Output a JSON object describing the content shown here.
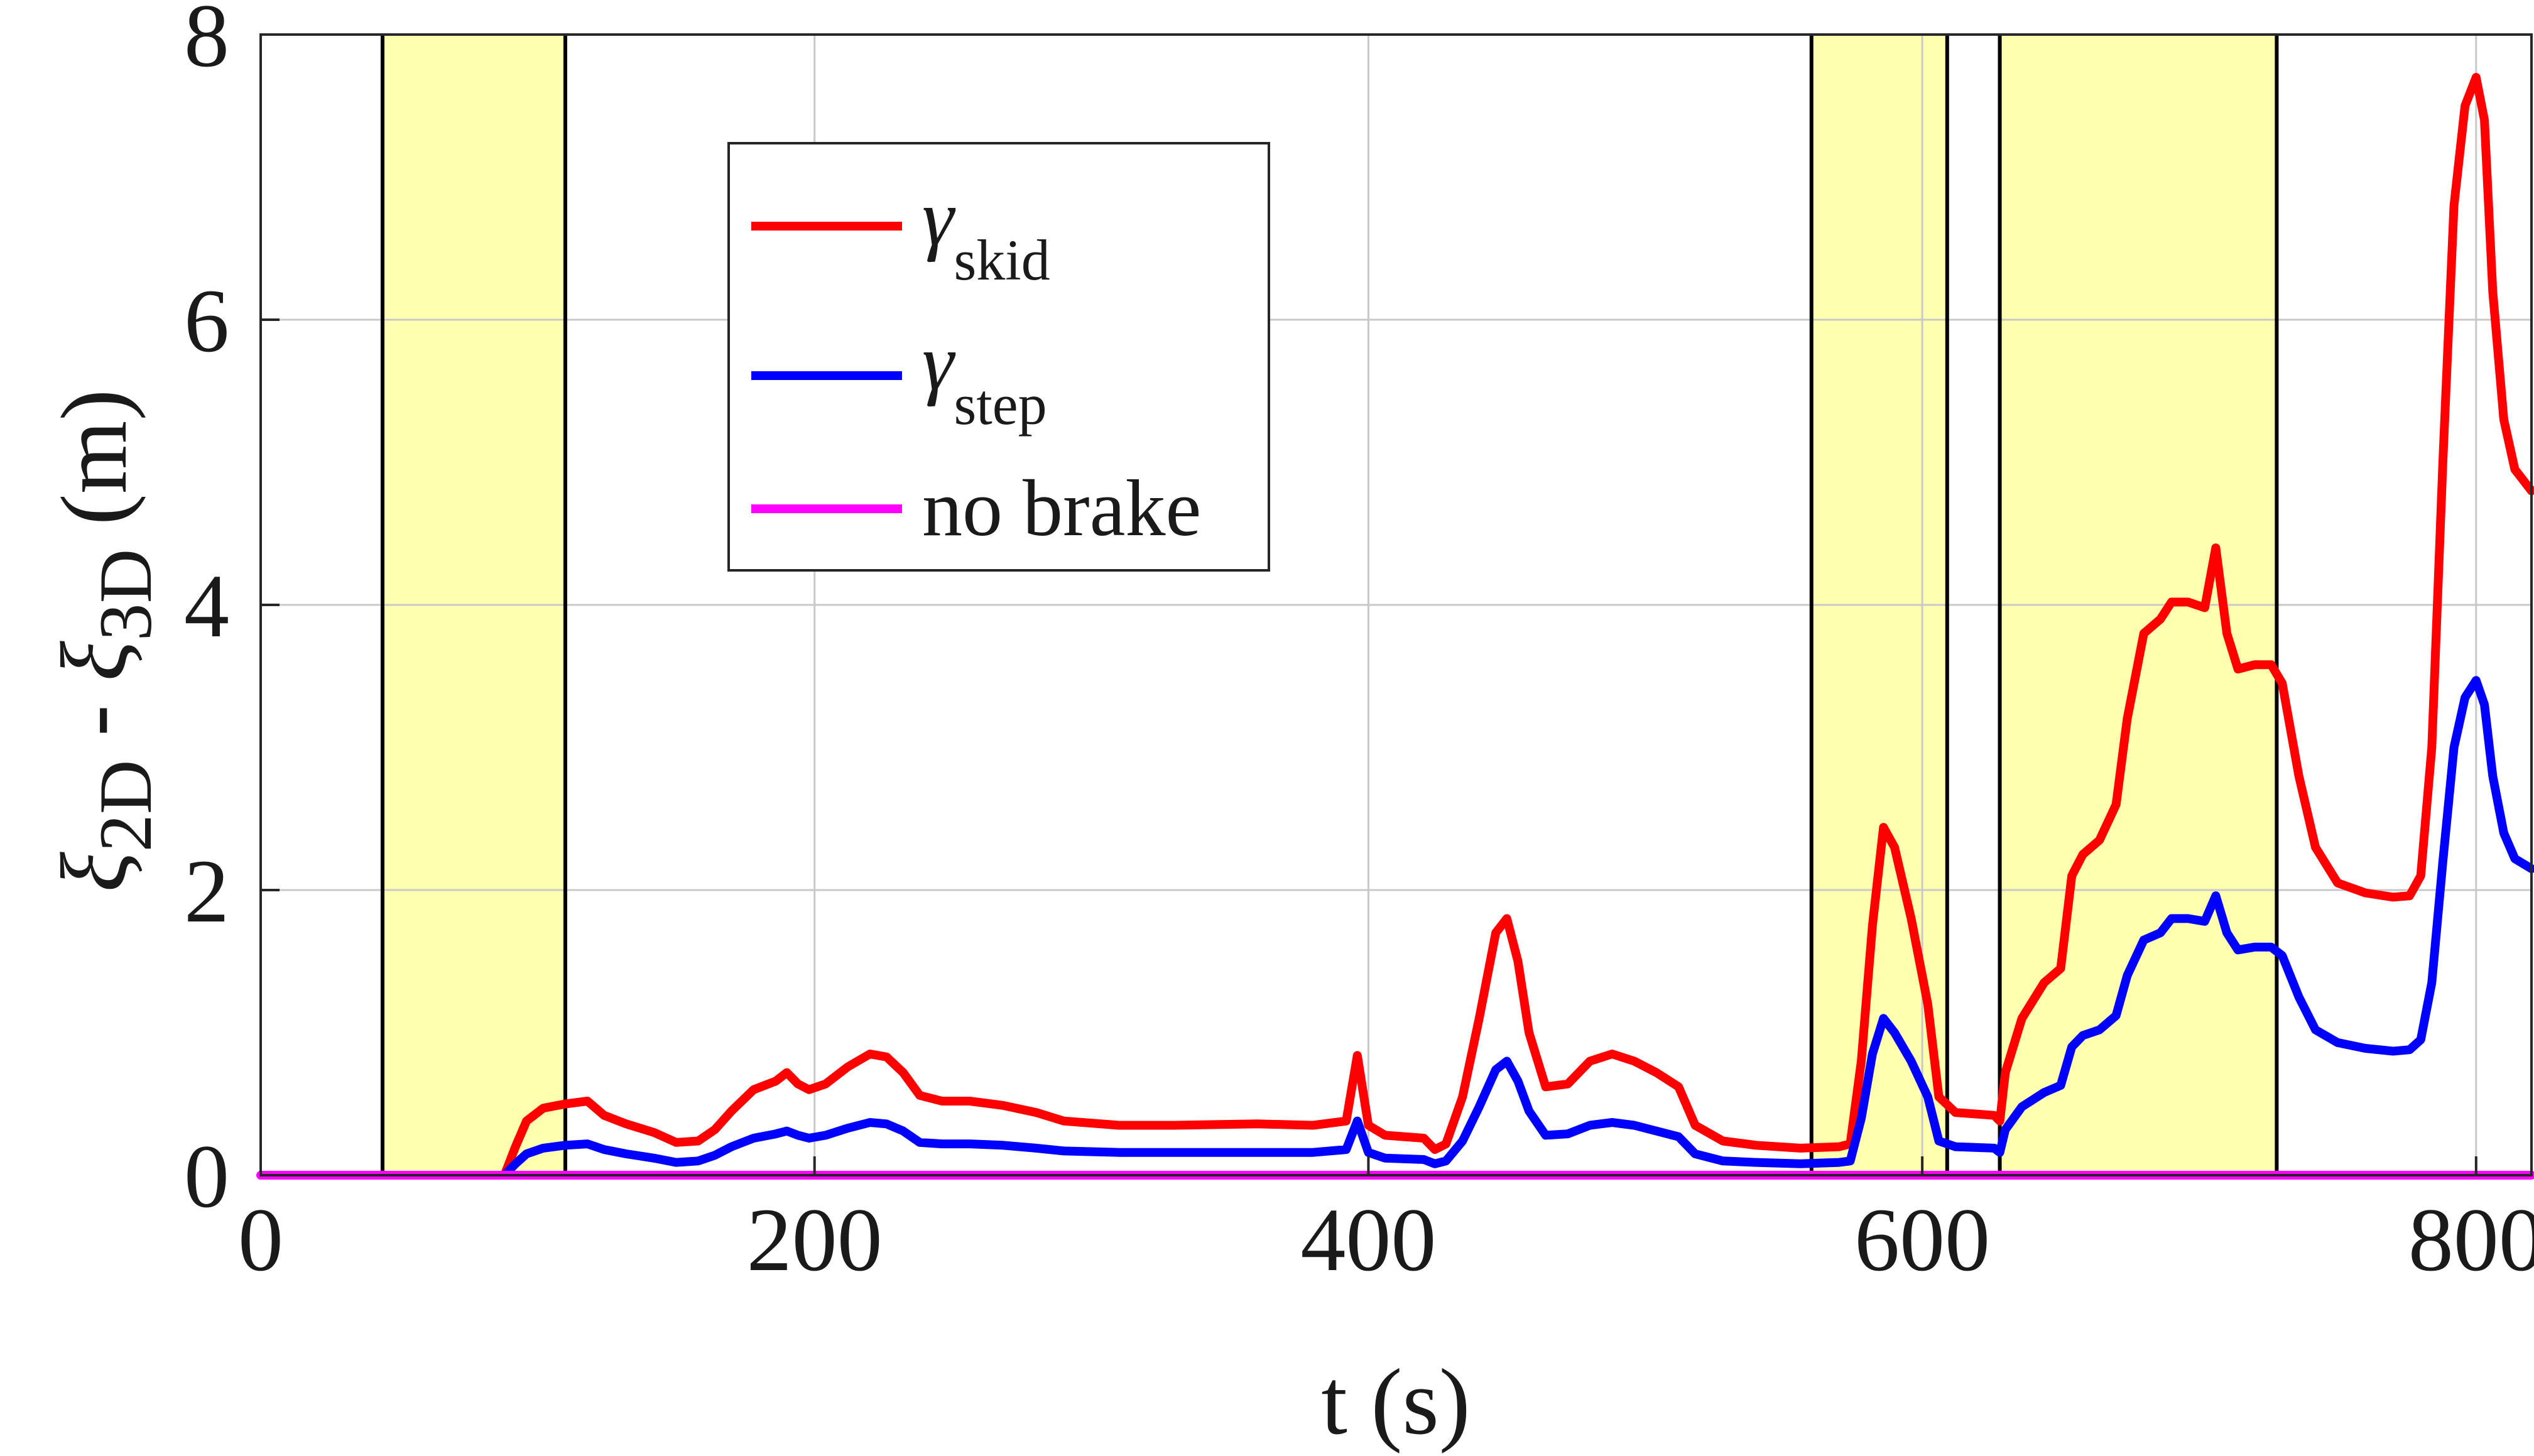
{
  "chart_data": {
    "type": "line",
    "xlabel": "t (s)",
    "ylabel": {
      "sym1": "ξ",
      "sub1": "2D",
      "dash": "-",
      "sym2": "ξ",
      "sub2": "3D",
      "unit": "(m)"
    },
    "xlim": [
      0,
      820
    ],
    "ylim": [
      0,
      8
    ],
    "xticks": [
      "0",
      "200",
      "400",
      "600",
      "800"
    ],
    "xtick_values": [
      0,
      200,
      400,
      600,
      800
    ],
    "yticks": [
      "0",
      "2",
      "4",
      "6",
      "8"
    ],
    "ytick_values": [
      0,
      2,
      4,
      6,
      8
    ],
    "grid": true,
    "legend_position": "upper-left-center",
    "shaded_intervals": [
      [
        44,
        110
      ],
      [
        560,
        609
      ],
      [
        628,
        728
      ]
    ],
    "vertical_lines": [
      44,
      110,
      560,
      609,
      628,
      728
    ],
    "colors": {
      "shade": "#ffffb0",
      "grid": "#c8c8c8",
      "vline": "#000000"
    },
    "series": [
      {
        "name": "γ skid",
        "legend_symbol": "γ",
        "legend_sub": "skid",
        "color": "#ff0000",
        "points": [
          [
            88,
            0
          ],
          [
            92,
            0.2
          ],
          [
            96,
            0.38
          ],
          [
            102,
            0.47
          ],
          [
            110,
            0.5
          ],
          [
            118,
            0.52
          ],
          [
            124,
            0.42
          ],
          [
            132,
            0.36
          ],
          [
            142,
            0.3
          ],
          [
            150,
            0.23
          ],
          [
            158,
            0.24
          ],
          [
            164,
            0.32
          ],
          [
            170,
            0.45
          ],
          [
            178,
            0.6
          ],
          [
            186,
            0.66
          ],
          [
            190,
            0.72
          ],
          [
            194,
            0.64
          ],
          [
            198,
            0.6
          ],
          [
            204,
            0.64
          ],
          [
            212,
            0.76
          ],
          [
            220,
            0.85
          ],
          [
            226,
            0.83
          ],
          [
            232,
            0.72
          ],
          [
            238,
            0.56
          ],
          [
            246,
            0.52
          ],
          [
            256,
            0.52
          ],
          [
            268,
            0.49
          ],
          [
            280,
            0.44
          ],
          [
            290,
            0.38
          ],
          [
            310,
            0.35
          ],
          [
            330,
            0.35
          ],
          [
            360,
            0.36
          ],
          [
            380,
            0.35
          ],
          [
            392,
            0.38
          ],
          [
            396,
            0.84
          ],
          [
            400,
            0.35
          ],
          [
            406,
            0.28
          ],
          [
            420,
            0.26
          ],
          [
            424,
            0.18
          ],
          [
            428,
            0.22
          ],
          [
            434,
            0.55
          ],
          [
            440,
            1.1
          ],
          [
            446,
            1.7
          ],
          [
            450,
            1.8
          ],
          [
            454,
            1.5
          ],
          [
            458,
            1.0
          ],
          [
            464,
            0.62
          ],
          [
            472,
            0.64
          ],
          [
            480,
            0.8
          ],
          [
            488,
            0.85
          ],
          [
            496,
            0.8
          ],
          [
            504,
            0.72
          ],
          [
            512,
            0.62
          ],
          [
            518,
            0.35
          ],
          [
            528,
            0.24
          ],
          [
            540,
            0.21
          ],
          [
            556,
            0.19
          ],
          [
            570,
            0.2
          ],
          [
            574,
            0.22
          ],
          [
            578,
            0.8
          ],
          [
            582,
            1.75
          ],
          [
            586,
            2.44
          ],
          [
            590,
            2.3
          ],
          [
            596,
            1.8
          ],
          [
            602,
            1.2
          ],
          [
            606,
            0.55
          ],
          [
            612,
            0.44
          ],
          [
            626,
            0.42
          ],
          [
            628,
            0.38
          ],
          [
            630,
            0.72
          ],
          [
            636,
            1.1
          ],
          [
            644,
            1.35
          ],
          [
            650,
            1.45
          ],
          [
            654,
            2.1
          ],
          [
            658,
            2.25
          ],
          [
            664,
            2.35
          ],
          [
            670,
            2.6
          ],
          [
            674,
            3.2
          ],
          [
            680,
            3.8
          ],
          [
            686,
            3.9
          ],
          [
            690,
            4.02
          ],
          [
            696,
            4.02
          ],
          [
            702,
            3.98
          ],
          [
            706,
            4.4
          ],
          [
            710,
            3.8
          ],
          [
            714,
            3.55
          ],
          [
            720,
            3.58
          ],
          [
            726,
            3.58
          ],
          [
            730,
            3.45
          ],
          [
            736,
            2.8
          ],
          [
            742,
            2.3
          ],
          [
            750,
            2.05
          ],
          [
            760,
            1.98
          ],
          [
            770,
            1.95
          ],
          [
            776,
            1.96
          ],
          [
            780,
            2.1
          ],
          [
            784,
            3.0
          ],
          [
            788,
            5.0
          ],
          [
            792,
            6.8
          ],
          [
            796,
            7.5
          ],
          [
            800,
            7.7
          ],
          [
            803,
            7.4
          ],
          [
            806,
            6.2
          ],
          [
            810,
            5.3
          ],
          [
            814,
            4.95
          ],
          [
            820,
            4.8
          ]
        ]
      },
      {
        "name": "γ step",
        "legend_symbol": "γ",
        "legend_sub": "step",
        "color": "#0000ff",
        "points": [
          [
            88,
            0
          ],
          [
            92,
            0.08
          ],
          [
            96,
            0.15
          ],
          [
            102,
            0.19
          ],
          [
            110,
            0.21
          ],
          [
            118,
            0.22
          ],
          [
            124,
            0.18
          ],
          [
            132,
            0.15
          ],
          [
            142,
            0.12
          ],
          [
            150,
            0.09
          ],
          [
            158,
            0.1
          ],
          [
            164,
            0.14
          ],
          [
            170,
            0.2
          ],
          [
            178,
            0.26
          ],
          [
            186,
            0.29
          ],
          [
            190,
            0.31
          ],
          [
            194,
            0.28
          ],
          [
            198,
            0.26
          ],
          [
            204,
            0.28
          ],
          [
            212,
            0.33
          ],
          [
            220,
            0.37
          ],
          [
            226,
            0.36
          ],
          [
            232,
            0.31
          ],
          [
            238,
            0.23
          ],
          [
            246,
            0.22
          ],
          [
            256,
            0.22
          ],
          [
            268,
            0.21
          ],
          [
            280,
            0.19
          ],
          [
            290,
            0.17
          ],
          [
            310,
            0.16
          ],
          [
            330,
            0.16
          ],
          [
            360,
            0.16
          ],
          [
            380,
            0.16
          ],
          [
            392,
            0.18
          ],
          [
            396,
            0.38
          ],
          [
            400,
            0.16
          ],
          [
            406,
            0.12
          ],
          [
            420,
            0.11
          ],
          [
            424,
            0.08
          ],
          [
            428,
            0.1
          ],
          [
            434,
            0.24
          ],
          [
            440,
            0.48
          ],
          [
            446,
            0.74
          ],
          [
            450,
            0.8
          ],
          [
            454,
            0.66
          ],
          [
            458,
            0.45
          ],
          [
            464,
            0.28
          ],
          [
            472,
            0.29
          ],
          [
            480,
            0.35
          ],
          [
            488,
            0.37
          ],
          [
            496,
            0.35
          ],
          [
            504,
            0.31
          ],
          [
            512,
            0.27
          ],
          [
            518,
            0.15
          ],
          [
            528,
            0.1
          ],
          [
            540,
            0.09
          ],
          [
            556,
            0.08
          ],
          [
            570,
            0.09
          ],
          [
            574,
            0.1
          ],
          [
            578,
            0.4
          ],
          [
            582,
            0.85
          ],
          [
            586,
            1.1
          ],
          [
            590,
            1.0
          ],
          [
            596,
            0.8
          ],
          [
            602,
            0.55
          ],
          [
            606,
            0.24
          ],
          [
            612,
            0.2
          ],
          [
            626,
            0.19
          ],
          [
            628,
            0.16
          ],
          [
            630,
            0.32
          ],
          [
            636,
            0.48
          ],
          [
            644,
            0.58
          ],
          [
            650,
            0.63
          ],
          [
            654,
            0.9
          ],
          [
            658,
            0.98
          ],
          [
            664,
            1.02
          ],
          [
            670,
            1.12
          ],
          [
            674,
            1.4
          ],
          [
            680,
            1.65
          ],
          [
            686,
            1.7
          ],
          [
            690,
            1.8
          ],
          [
            696,
            1.8
          ],
          [
            702,
            1.78
          ],
          [
            706,
            1.96
          ],
          [
            710,
            1.7
          ],
          [
            714,
            1.58
          ],
          [
            720,
            1.6
          ],
          [
            726,
            1.6
          ],
          [
            730,
            1.54
          ],
          [
            736,
            1.25
          ],
          [
            742,
            1.02
          ],
          [
            750,
            0.93
          ],
          [
            760,
            0.89
          ],
          [
            770,
            0.87
          ],
          [
            776,
            0.88
          ],
          [
            780,
            0.95
          ],
          [
            784,
            1.35
          ],
          [
            788,
            2.2
          ],
          [
            792,
            3.0
          ],
          [
            796,
            3.35
          ],
          [
            800,
            3.47
          ],
          [
            803,
            3.3
          ],
          [
            806,
            2.8
          ],
          [
            810,
            2.4
          ],
          [
            814,
            2.22
          ],
          [
            820,
            2.15
          ]
        ]
      },
      {
        "name": "no brake",
        "legend_label": "no brake",
        "color": "#ff00ff",
        "points": [
          [
            0,
            0
          ],
          [
            820,
            0
          ]
        ]
      }
    ]
  }
}
